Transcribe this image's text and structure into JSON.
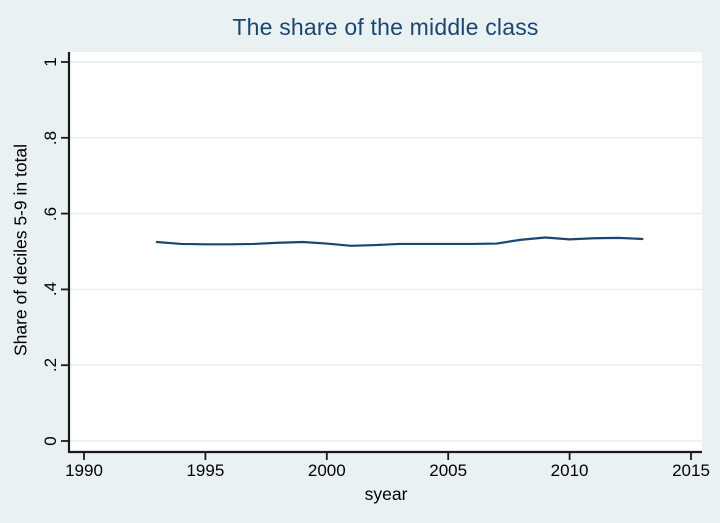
{
  "chart_data": {
    "type": "line",
    "title": "The share of the middle class",
    "xlabel": "syear",
    "ylabel": "Share of deciles 5-9 in total",
    "xlim": [
      1990,
      2015
    ],
    "ylim": [
      0,
      1
    ],
    "grid": "horizontal",
    "legend": "none",
    "x_ticks": [
      {
        "value": 1990,
        "label": "1990"
      },
      {
        "value": 1995,
        "label": "1995"
      },
      {
        "value": 2000,
        "label": "2000"
      },
      {
        "value": 2005,
        "label": "2005"
      },
      {
        "value": 2010,
        "label": "2010"
      },
      {
        "value": 2015,
        "label": "2015"
      }
    ],
    "y_ticks": [
      {
        "value": 0,
        "label": "0"
      },
      {
        "value": 0.2,
        "label": ".2"
      },
      {
        "value": 0.4,
        "label": ".4"
      },
      {
        "value": 0.6,
        "label": ".6"
      },
      {
        "value": 0.8,
        "label": ".8"
      },
      {
        "value": 1,
        "label": "1"
      }
    ],
    "series": [
      {
        "name": "Share of deciles 5-9 in total",
        "color": "#1a476f",
        "x": [
          1993,
          1994,
          1995,
          1996,
          1997,
          1998,
          1999,
          2000,
          2001,
          2002,
          2003,
          2004,
          2005,
          2006,
          2007,
          2008,
          2009,
          2010,
          2011,
          2012,
          2013
        ],
        "values": [
          0.525,
          0.52,
          0.519,
          0.519,
          0.52,
          0.523,
          0.525,
          0.521,
          0.515,
          0.517,
          0.52,
          0.52,
          0.52,
          0.52,
          0.521,
          0.531,
          0.537,
          0.532,
          0.535,
          0.536,
          0.533
        ]
      }
    ]
  },
  "colors": {
    "background": "#eaf1f3",
    "plot_background": "#ffffff",
    "gridline": "#e5edf2",
    "axis": "#1a1a1a",
    "title": "#1a476f",
    "tick_label": "#000000"
  }
}
